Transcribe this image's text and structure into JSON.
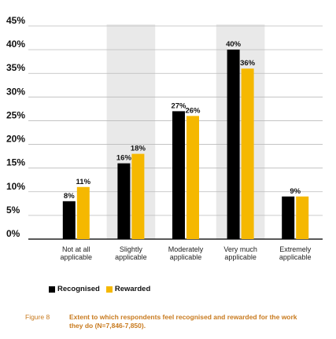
{
  "colors": {
    "recognised": "#000000",
    "rewarded": "#f5b800",
    "shade": "#e9e9e9",
    "axis": "#222222",
    "grid": "#bbbbbb",
    "caption": "#c87a1e"
  },
  "chart_data": {
    "type": "bar",
    "title": "",
    "xlabel": "",
    "ylabel": "",
    "ylim": [
      0,
      45
    ],
    "y_ticks": [
      "0%",
      "5%",
      "10%",
      "15%",
      "20%",
      "25%",
      "30%",
      "35%",
      "40%",
      "45%"
    ],
    "categories": [
      [
        "Not at all",
        "applicable"
      ],
      [
        "Slightly",
        "applicable"
      ],
      [
        "Moderately",
        "applicable"
      ],
      [
        "Very much",
        "applicable"
      ],
      [
        "Extremely",
        "applicable"
      ]
    ],
    "shaded_categories": [
      1,
      3
    ],
    "series": [
      {
        "name": "Recognised",
        "values": [
          8,
          16,
          27,
          40,
          9
        ]
      },
      {
        "name": "Rewarded",
        "values": [
          11,
          18,
          26,
          36,
          9
        ]
      }
    ],
    "data_labels": [
      {
        "category": 0,
        "text": "8%"
      },
      {
        "category": 0,
        "text": "11%"
      },
      {
        "category": 1,
        "text": "16%"
      },
      {
        "category": 1,
        "text": "18%"
      },
      {
        "category": 2,
        "text": "27%"
      },
      {
        "category": 2,
        "text": "26%"
      },
      {
        "category": 3,
        "text": "40%"
      },
      {
        "category": 3,
        "text": "36%"
      },
      {
        "category": 4,
        "text": "9%"
      }
    ],
    "legend_position": "bottom-left",
    "grid": true
  },
  "legend": {
    "recognised": "Recognised",
    "rewarded": "Rewarded"
  },
  "caption": {
    "figure": "Figure 8",
    "text": "Extent to which respondents feel recognised and rewarded for the work they do (N=7,846-7,850)."
  }
}
